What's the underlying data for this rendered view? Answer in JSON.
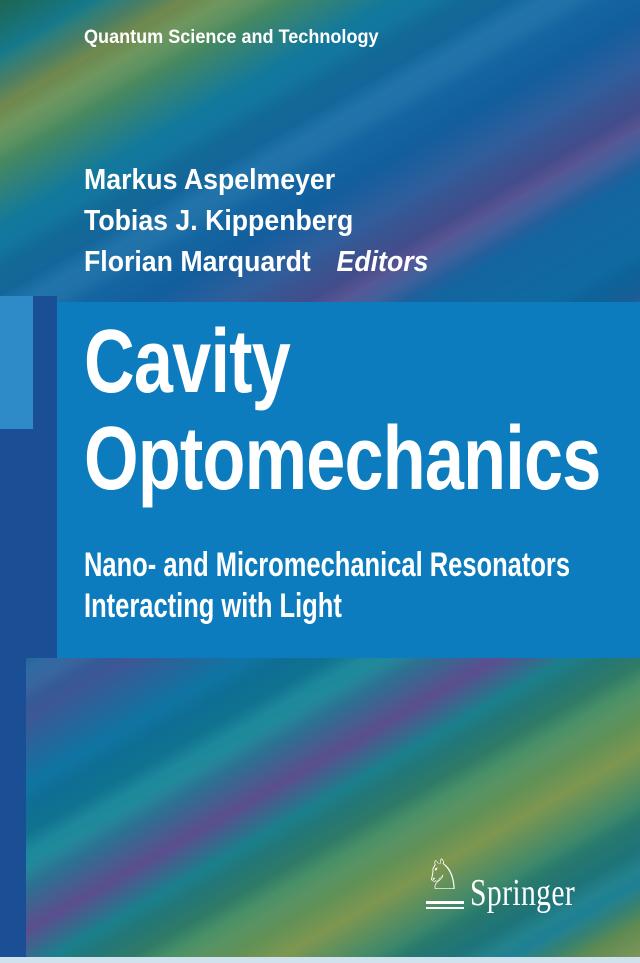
{
  "cover": {
    "series_label": "Quantum Science and Technology",
    "authors": [
      "Markus Aspelmeyer",
      "Tobias J. Kippenberg",
      "Florian Marquardt"
    ],
    "editors_label": "Editors",
    "title_lines": [
      "Cavity",
      "Optomechanics"
    ],
    "subtitle_lines": [
      "Nano- and Micromechanical Resonators",
      "Interacting with Light"
    ],
    "publisher": {
      "name": "Springer",
      "logo_icon": "springer-knight-horse-icon",
      "knight_glyph": "♘"
    },
    "colors": {
      "title_panel_blue": "#0d7cbe",
      "left_tab_blue": "#2e8bc7",
      "left_bar_navy": "#1a4f95",
      "text_white": "#ffffff",
      "background_stripe_teal": "#12799c",
      "background_stripe_green": "#3f8a5f",
      "background_stripe_olive": "#7d9750",
      "background_stripe_blue": "#156ea6",
      "background_stripe_purple": "#514e90",
      "bottom_edge_strip": "#cfe2ed"
    }
  }
}
